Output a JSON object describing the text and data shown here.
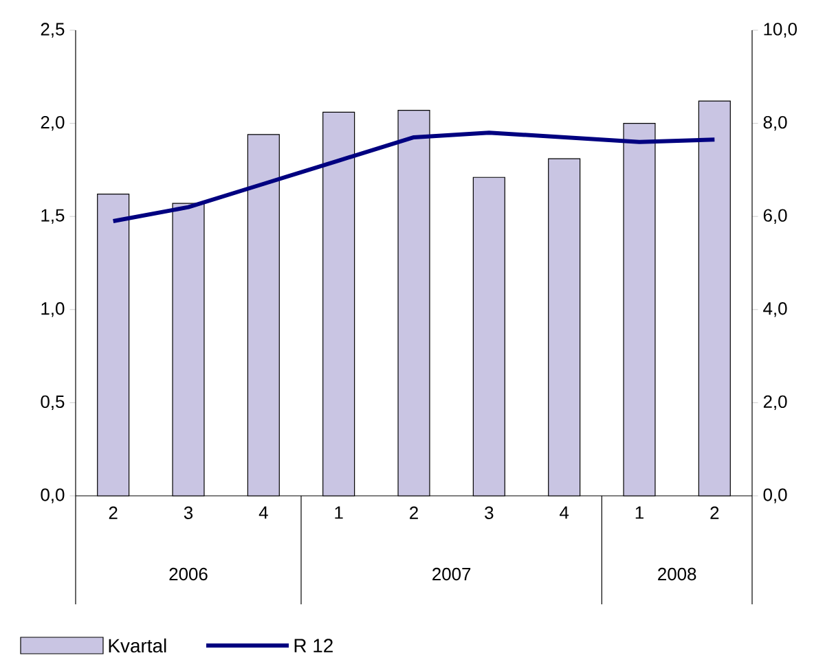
{
  "chart_data": {
    "type": "bar",
    "categories": [
      "2",
      "3",
      "4",
      "1",
      "2",
      "3",
      "4",
      "1",
      "2"
    ],
    "series": [
      {
        "name": "Kvartal",
        "color": "#c9c5e3",
        "values": [
          1.62,
          1.57,
          1.94,
          2.06,
          2.07,
          1.71,
          1.81,
          2.0,
          2.12
        ]
      },
      {
        "name": "R 12",
        "type": "line",
        "axis": "y2",
        "color": "#000080",
        "values": [
          5.9,
          6.2,
          6.7,
          7.2,
          7.7,
          7.8,
          7.7,
          7.6,
          7.65
        ]
      }
    ],
    "ylim": [
      0,
      2.5
    ],
    "yticks": [
      {
        "value": 0,
        "label": "0,0"
      },
      {
        "value": 0.5,
        "label": "0,5"
      },
      {
        "value": 1,
        "label": "1,0"
      },
      {
        "value": 1.5,
        "label": "1,5"
      },
      {
        "value": 2,
        "label": "2,0"
      },
      {
        "value": 2.5,
        "label": "2,5"
      }
    ],
    "y2lim": [
      0,
      10
    ],
    "y2ticks": [
      {
        "value": 0,
        "label": "0,0"
      },
      {
        "value": 2,
        "label": "2,0"
      },
      {
        "value": 4,
        "label": "4,0"
      },
      {
        "value": 6,
        "label": "6,0"
      },
      {
        "value": 8,
        "label": "8,0"
      },
      {
        "value": 10,
        "label": "10,0"
      }
    ],
    "annotations": [
      "2006",
      "2007",
      "2008"
    ],
    "legend": "bottom left",
    "grid": false,
    "marker": "none",
    "line_style": "solid"
  }
}
